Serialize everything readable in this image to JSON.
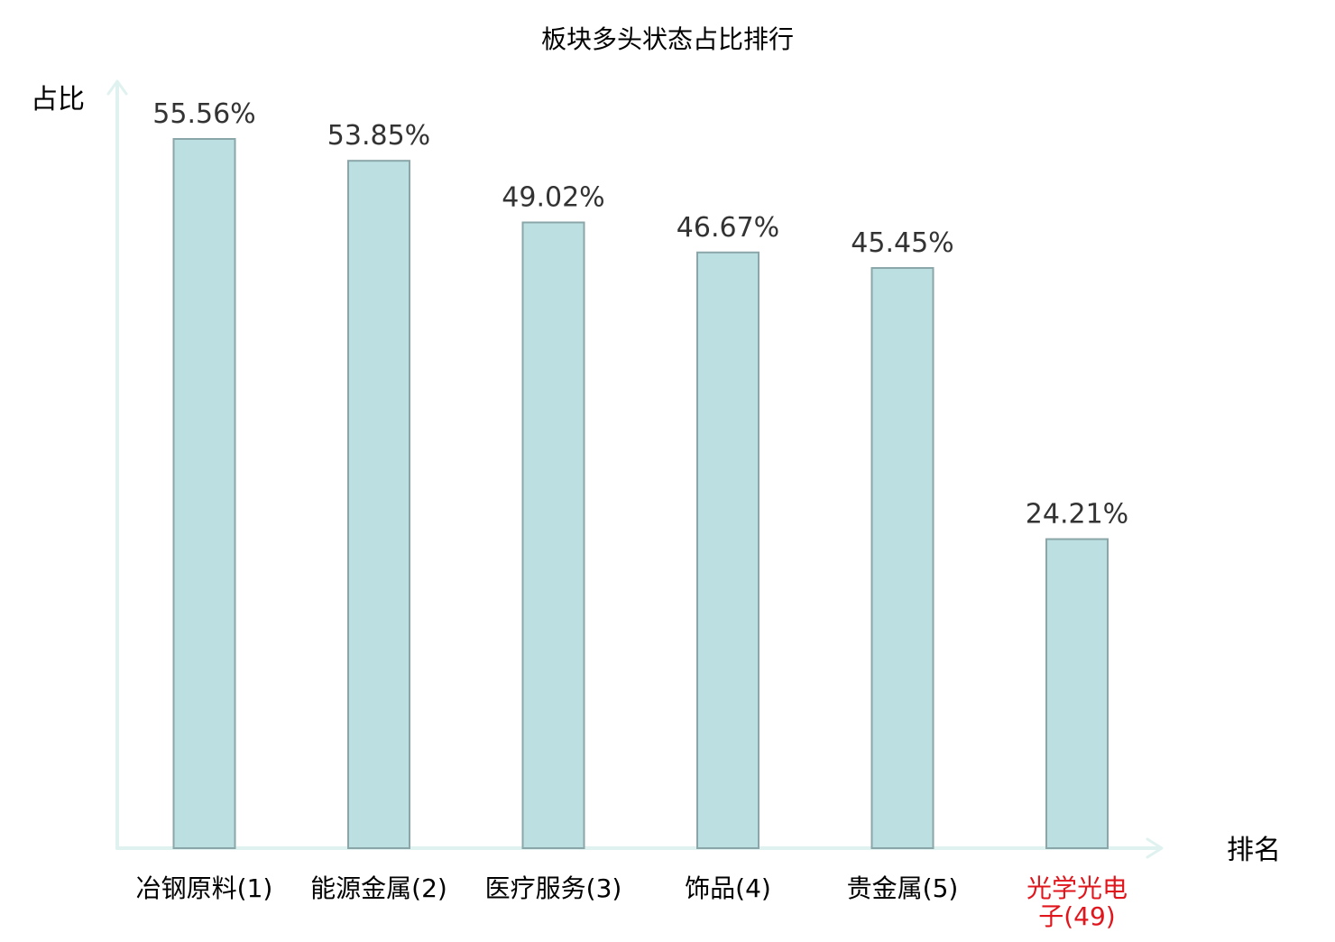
{
  "chart_data": {
    "type": "bar",
    "title": "板块多头状态占比排行",
    "ylabel": "占比",
    "xlabel": "排名",
    "ylim": [
      0,
      60
    ],
    "grid": false,
    "categories": [
      "冶钢原料(1)",
      "能源金属(2)",
      "医疗服务(3)",
      "饰品(4)",
      "贵金属(5)",
      "光学光电子(49)"
    ],
    "values": [
      55.56,
      53.85,
      49.02,
      46.67,
      45.45,
      24.21
    ],
    "value_labels": [
      "55.56%",
      "53.85%",
      "49.02%",
      "46.67%",
      "45.45%",
      "24.21%"
    ],
    "highlight_category": "光学光电子(49)",
    "colors": {
      "bar_fill": "#bce0e2",
      "bar_stroke": "#8aa6a8",
      "axis": "#dff2ef",
      "text": "#000000",
      "value_text": "#333333",
      "highlight_text": "#e0161c"
    }
  }
}
